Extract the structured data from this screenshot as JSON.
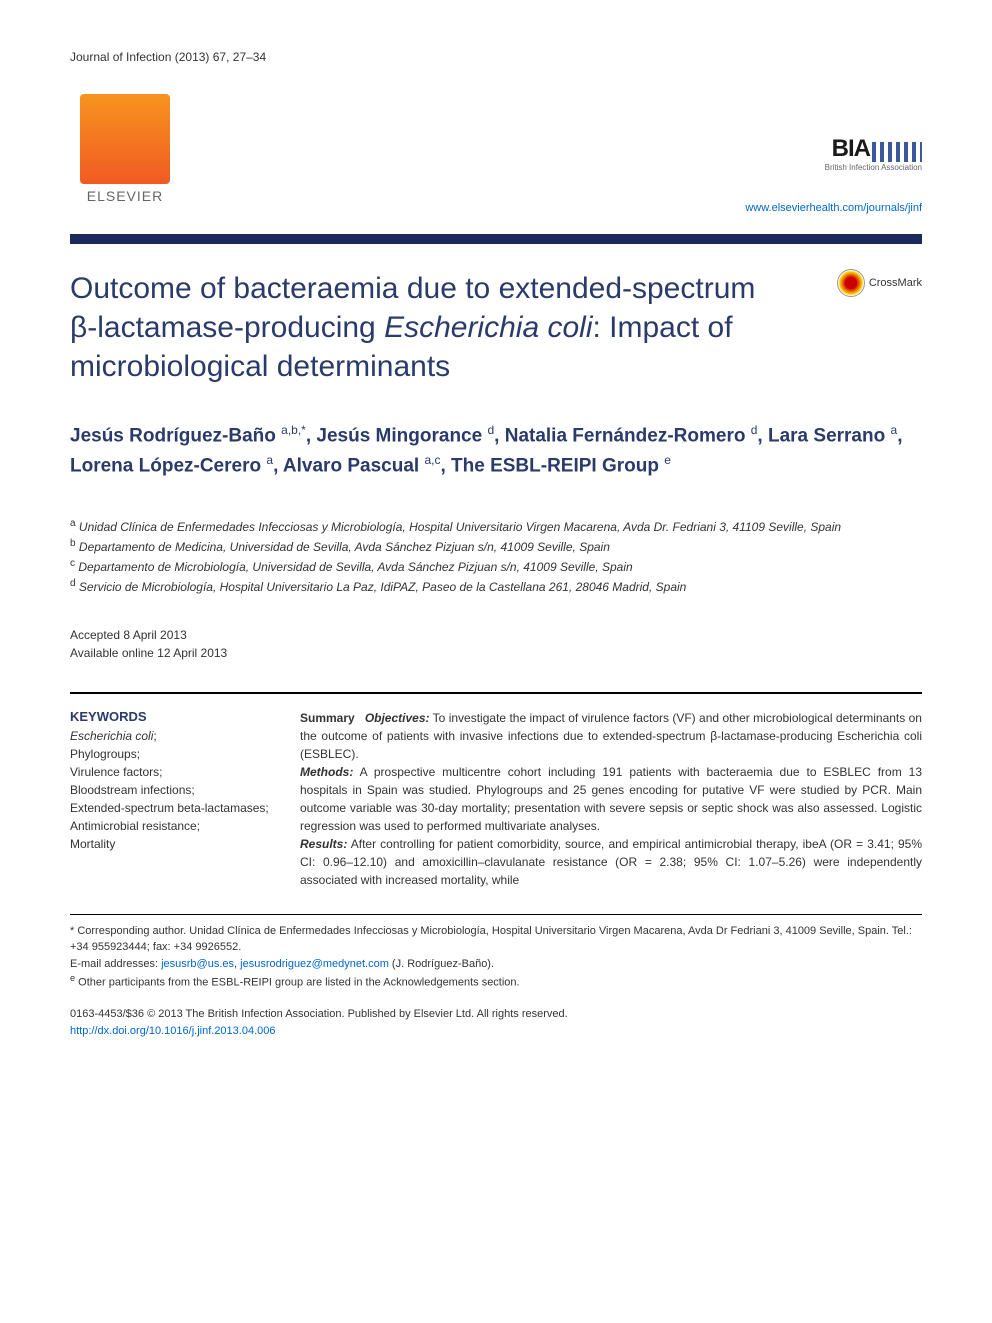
{
  "journal_header": "Journal of Infection (2013) 67, 27–34",
  "elsevier_label": "ELSEVIER",
  "bia_label": "BIA",
  "bia_subtitle": "British Infection Association",
  "journal_link": "www.elsevierhealth.com/journals/jinf",
  "title_part1": "Outcome of bacteraemia due to extended-spectrum β-lactamase-producing ",
  "title_italic": "Escherichia coli",
  "title_part2": ": Impact of microbiological determinants",
  "crossmark_label": "CrossMark",
  "authors": [
    {
      "name": "Jesús Rodríguez-Baño",
      "sup": "a,b,*"
    },
    {
      "name": "Jesús Mingorance",
      "sup": "d"
    },
    {
      "name": "Natalia Fernández-Romero",
      "sup": "d"
    },
    {
      "name": "Lara Serrano",
      "sup": "a"
    },
    {
      "name": "Lorena López-Cerero",
      "sup": "a"
    },
    {
      "name": "Alvaro Pascual",
      "sup": "a,c"
    },
    {
      "name": "The ESBL-REIPI Group",
      "sup": "e"
    }
  ],
  "affiliations": [
    {
      "sup": "a",
      "text": "Unidad Clínica de Enfermedades Infecciosas y Microbiología, Hospital Universitario Virgen Macarena, Avda Dr. Fedriani 3, 41109 Seville, Spain"
    },
    {
      "sup": "b",
      "text": "Departamento de Medicina, Universidad de Sevilla, Avda Sánchez Pizjuan s/n, 41009 Seville, Spain"
    },
    {
      "sup": "c",
      "text": "Departamento de Microbiología, Universidad de Sevilla, Avda Sánchez Pizjuan s/n, 41009 Seville, Spain"
    },
    {
      "sup": "d",
      "text": "Servicio de Microbiología, Hospital Universitario La Paz, IdiPAZ, Paseo de la Castellana 261, 28046 Madrid, Spain"
    }
  ],
  "accepted": "Accepted 8 April 2013",
  "available": "Available online 12 April 2013",
  "keywords_heading": "KEYWORDS",
  "keywords": "Escherichia coli; Phylogroups; Virulence factors; Bloodstream infections; Extended-spectrum beta-lactamases; Antimicrobial resistance; Mortality",
  "summary_label": "Summary",
  "objectives_label": "Objectives:",
  "objectives_text": " To investigate the impact of virulence factors (VF) and other microbiological determinants on the outcome of patients with invasive infections due to extended-spectrum β-lactamase-producing Escherichia coli (ESBLEC).",
  "methods_label": "Methods:",
  "methods_text": " A prospective multicentre cohort including 191 patients with bacteraemia due to ESBLEC from 13 hospitals in Spain was studied. Phylogroups and 25 genes encoding for putative VF were studied by PCR. Main outcome variable was 30-day mortality; presentation with severe sepsis or septic shock was also assessed. Logistic regression was used to performed multivariate analyses.",
  "results_label": "Results:",
  "results_text": " After controlling for patient comorbidity, source, and empirical antimicrobial therapy, ibeA (OR = 3.41; 95% CI: 0.96–12.10) and amoxicillin–clavulanate resistance (OR = 2.38; 95% CI: 1.07–5.26) were independently associated with increased mortality, while",
  "corresponding_label": "* Corresponding author. ",
  "corresponding_text": "Unidad Clínica de Enfermedades Infecciosas y Microbiología, Hospital Universitario Virgen Macarena, Avda Dr Fedriani 3, 41009 Seville, Spain. Tel.: +34 955923444; fax: +34 9926552.",
  "email_label": "E-mail addresses: ",
  "email1": "jesusrb@us.es",
  "email2": "jesusrodriguez@medynet.com",
  "email_suffix": " (J. Rodríguez-Baño).",
  "footnote_e": "Other participants from the ESBL-REIPI group are listed in the Acknowledgements section.",
  "copyright_line": "0163-4453/$36 © 2013 The British Infection Association. Published by Elsevier Ltd. All rights reserved.",
  "doi": "http://dx.doi.org/10.1016/j.jinf.2013.04.006"
}
